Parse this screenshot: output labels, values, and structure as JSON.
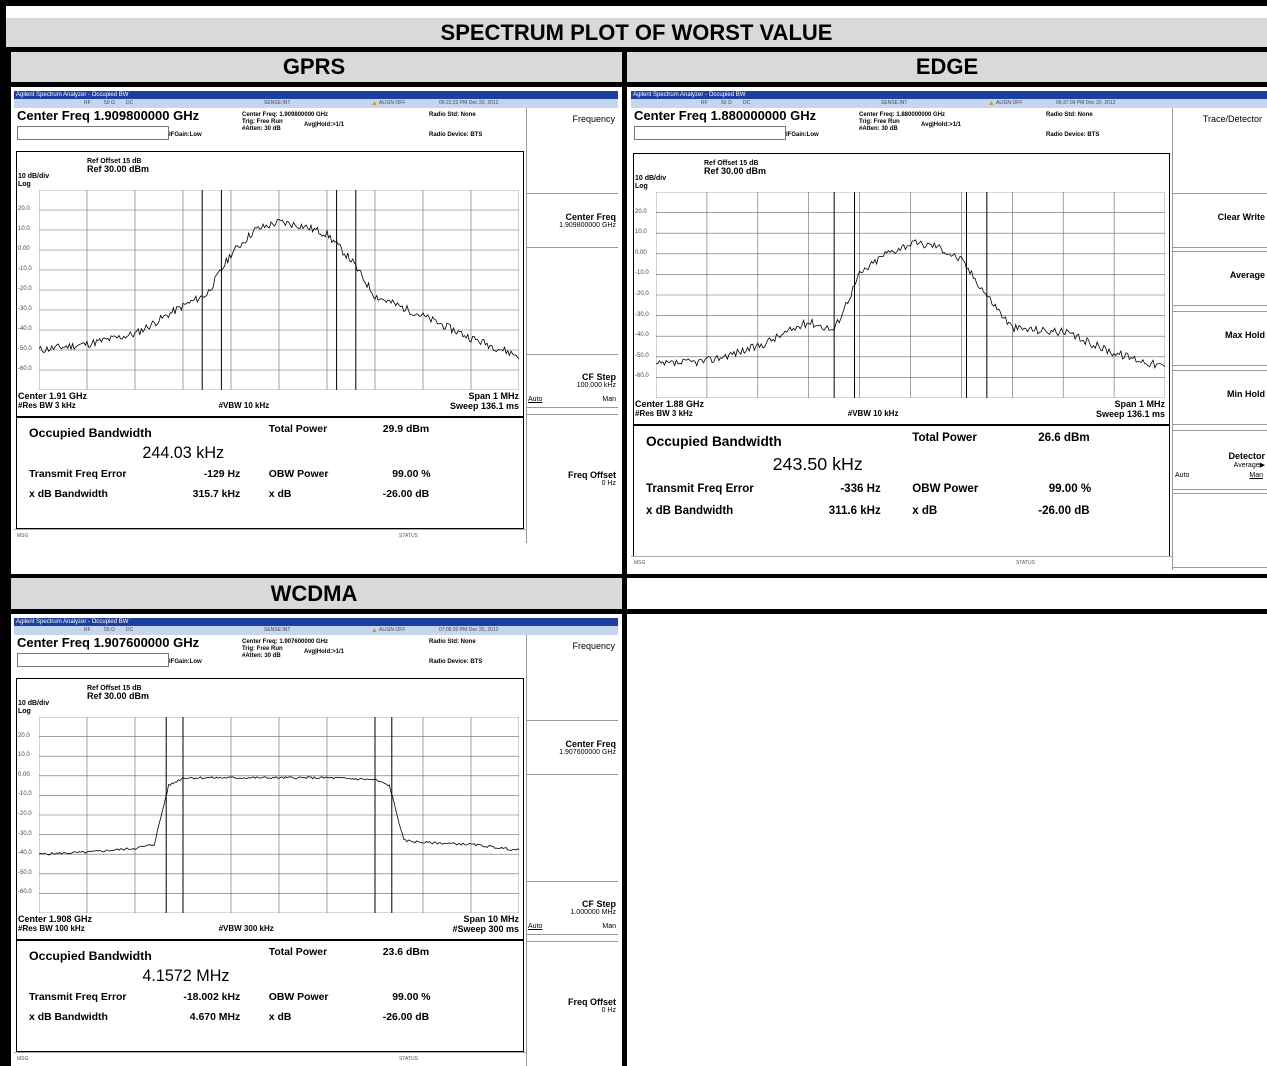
{
  "table": {
    "title": "SPECTRUM PLOT OF WORST VALUE",
    "gprs_label": "GPRS",
    "edge_label": "EDGE",
    "wcdma_label": "WCDMA"
  },
  "common": {
    "window_title": "Agilent Spectrum Analyzer - Occupied BW",
    "rf": "RF",
    "ohm": "50 Ω",
    "dc": "DC",
    "sense": "SENSE:INT",
    "align": "ALIGN OFF",
    "trig": "Trig: Free Run",
    "avg_hold": "Avg|Hold:>1/1",
    "ifgain": "IFGain:Low",
    "atten": "#Atten: 30 dB",
    "radio_std": "Radio Std: None",
    "radio_device": "Radio Device: BTS",
    "ref_offset": "Ref Offset 15 dB",
    "ref_level": "Ref 30.00 dBm",
    "scale": "10 dB/div",
    "log": "Log",
    "msg": "MSG",
    "status": "STATUS",
    "occ_bw_label": "Occupied Bandwidth",
    "total_power_label": "Total Power",
    "tfe_label": "Transmit Freq Error",
    "obw_power_label": "OBW Power",
    "obw_power": "99.00 %",
    "xdb_bw_label": "x dB Bandwidth",
    "xdb_label": "x dB",
    "xdb": "-26.00 dB",
    "y_ticks": [
      "20.0",
      "10.0",
      "0.00",
      "-10.0",
      "-20.0",
      "-30.0",
      "-40.0",
      "-50.0",
      "-60.0"
    ]
  },
  "gprs": {
    "timestamp": "06:22:23 PM Dec 20, 2012",
    "center_freq": "Center Freq 1.909800000 GHz",
    "center_freq_small": "Center Freq: 1.909800000 GHz",
    "center": "Center 1.91 GHz",
    "res_bw": "#Res BW 3 kHz",
    "vbw": "#VBW 10 kHz",
    "span": "Span 1 MHz",
    "sweep": "Sweep 136.1 ms",
    "occ_bw": "244.03 kHz",
    "total_power": "29.9 dBm",
    "tfe": "-129 Hz",
    "xdb_bw": "315.7 kHz",
    "softkeys": {
      "menu": "Frequency",
      "k1": "Center Freq",
      "k1_sub": "1.909800000 GHz",
      "k2": "CF Step",
      "k2_sub": "100.000 kHz",
      "k2_auto": "Auto",
      "k2_man": "Man",
      "k3": "Freq Offset",
      "k3_sub": "0 Hz"
    }
  },
  "edge": {
    "timestamp": "06:37:09 PM Dec 20, 2012",
    "center_freq": "Center Freq 1.880000000 GHz",
    "center_freq_small": "Center Freq: 1.880000000 GHz",
    "center": "Center 1.88 GHz",
    "res_bw": "#Res BW 3 kHz",
    "vbw": "#VBW 10 kHz",
    "span": "Span 1 MHz",
    "sweep": "Sweep 136.1 ms",
    "occ_bw": "243.50 kHz",
    "total_power": "26.6 dBm",
    "tfe": "-336 Hz",
    "xdb_bw": "311.6 kHz",
    "softkeys": {
      "menu": "Trace/Detector",
      "k1": "Clear Write",
      "k2": "Average",
      "k3": "Max Hold",
      "k4": "Min Hold",
      "k5": "Detector",
      "k5_sub": "Average▶",
      "k5_auto": "Auto",
      "k5_man": "Man"
    }
  },
  "wcdma": {
    "timestamp": "07:06:20 PM Dec 20, 2012",
    "center_freq": "Center Freq 1.907600000 GHz",
    "center_freq_small": "Center Freq: 1.907600000 GHz",
    "center": "Center 1.908 GHz",
    "res_bw": "#Res BW 100 kHz",
    "vbw": "#VBW 300 kHz",
    "span": "Span 10 MHz",
    "sweep": "#Sweep 300 ms",
    "occ_bw": "4.1572 MHz",
    "total_power": "23.6 dBm",
    "tfe": "-18.002 kHz",
    "xdb_bw": "4.670 MHz",
    "softkeys": {
      "menu": "Frequency",
      "k1": "Center Freq",
      "k1_sub": "1.907600000 GHz",
      "k2": "CF Step",
      "k2_sub": "1.000000 MHz",
      "k2_auto": "Auto",
      "k2_man": "Man",
      "k3": "Freq Offset",
      "k3_sub": "0 Hz"
    }
  },
  "chart_data": [
    {
      "type": "line",
      "name": "GPRS",
      "ylim": [
        -70,
        30
      ],
      "x": [
        -0.5,
        -0.4,
        -0.3,
        -0.2,
        -0.15,
        -0.1,
        -0.05,
        0.0,
        0.05,
        0.1,
        0.15,
        0.2,
        0.3,
        0.4,
        0.5
      ],
      "y": [
        -50,
        -47,
        -42,
        -28,
        -22,
        -2,
        10,
        14,
        12,
        8,
        -5,
        -23,
        -33,
        -44,
        -53
      ]
    },
    {
      "type": "line",
      "name": "EDGE",
      "ylim": [
        -70,
        30
      ],
      "x": [
        -0.5,
        -0.4,
        -0.3,
        -0.2,
        -0.15,
        -0.1,
        -0.05,
        0.0,
        0.05,
        0.1,
        0.15,
        0.2,
        0.3,
        0.4,
        0.5
      ],
      "y": [
        -54,
        -52,
        -45,
        -33,
        -37,
        -10,
        0,
        5,
        4,
        -3,
        -20,
        -36,
        -38,
        -48,
        -55
      ]
    },
    {
      "type": "line",
      "name": "WCDMA",
      "ylim": [
        -70,
        30
      ],
      "x": [
        -5,
        -4,
        -3,
        -2.6,
        -2.3,
        -2.0,
        -1,
        0,
        1,
        2.0,
        2.3,
        2.6,
        3,
        4,
        5
      ],
      "y": [
        -40,
        -39,
        -37,
        -35,
        -5,
        -1,
        -1,
        -1,
        -1,
        -2,
        -5,
        -33,
        -34,
        -35,
        -38
      ]
    }
  ]
}
